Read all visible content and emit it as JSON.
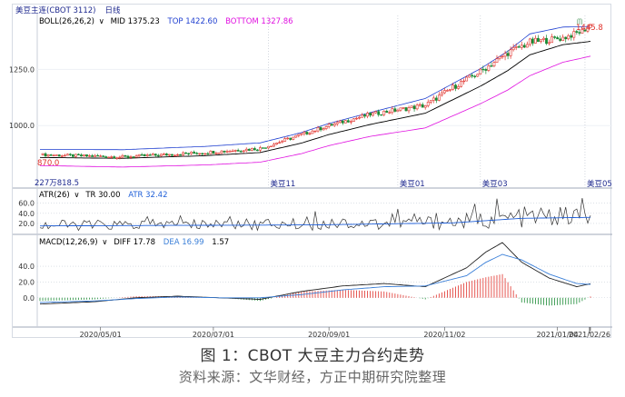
{
  "chart_data": {
    "type": "candlestick",
    "instrument": "美豆主连(CBOT 3112)",
    "period": "日线",
    "price_axis": {
      "ticks": [
        1250.0,
        1000.0
      ],
      "tick_labels": [
        "1250.0",
        "1000.0"
      ]
    },
    "boll_header": {
      "name": "BOLL(26,26,2)",
      "mid": "MID 1375.23",
      "top": "TOP 1422.60",
      "bottom": "BOTTOM 1327.86"
    },
    "annotations": {
      "high": "1445.8",
      "low": "870.0",
      "low2": "227万818.5"
    },
    "contract_labels": [
      "美豆11",
      "美豆01",
      "美豆03",
      "美豆05"
    ],
    "atr_header": {
      "name": "ATR(26)",
      "tr": "TR 30.00",
      "atr": "ATR 32.42"
    },
    "atr_axis": {
      "ticks": [
        20.0,
        40.0,
        60.0
      ],
      "tick_labels": [
        "20.0",
        "40.0",
        "60.0"
      ]
    },
    "macd_header": {
      "name": "MACD(12,26,9)",
      "diff": "DIFF 17.78",
      "dea": "DEA 16.99",
      "macd": "1.57"
    },
    "macd_axis": {
      "ticks": [
        0.0,
        20.0,
        40.0
      ],
      "tick_labels": [
        "0.0",
        "20.0",
        "40.0"
      ]
    },
    "x_axis": {
      "labels": [
        "2020/05/01",
        "2020/07/01",
        "2020/09/01",
        "2020/11/02",
        "2021/01/04",
        "2021/02/26"
      ]
    },
    "price_series": {
      "day_index": [
        0,
        30,
        60,
        80,
        95,
        105,
        120,
        140,
        150,
        160,
        170,
        178,
        190,
        197,
        200
      ],
      "close": [
        870,
        860,
        880,
        898,
        960,
        1000,
        1050,
        1090,
        1170,
        1240,
        1325,
        1370,
        1390,
        1420,
        1445
      ]
    },
    "boll_mid": {
      "day_index": [
        0,
        30,
        60,
        80,
        95,
        105,
        120,
        140,
        150,
        160,
        170,
        178,
        190,
        197,
        200
      ],
      "values": [
        858,
        854,
        866,
        880,
        922,
        960,
        1005,
        1055,
        1115,
        1175,
        1245,
        1315,
        1360,
        1370,
        1375
      ]
    },
    "boll_band_width": {
      "day_index": [
        0,
        80,
        120,
        160,
        178,
        200
      ],
      "values": [
        18,
        25,
        35,
        60,
        75,
        48
      ]
    },
    "atr_series": {
      "day_index": [
        0,
        100,
        150,
        175,
        200
      ],
      "values": [
        15,
        17,
        21,
        30,
        32
      ]
    },
    "macd_series": {
      "day_index": [
        0,
        20,
        35,
        50,
        65,
        80,
        95,
        110,
        125,
        140,
        155,
        162,
        168,
        175,
        185,
        195,
        200
      ],
      "diff": [
        -8,
        -5,
        0,
        2,
        0,
        -2,
        8,
        15,
        18,
        14,
        38,
        58,
        70,
        45,
        25,
        14,
        17.8
      ],
      "dea": [
        -6,
        -4,
        -1,
        1,
        0,
        0,
        4,
        10,
        14,
        15,
        28,
        45,
        55,
        48,
        30,
        18,
        17.0
      ]
    },
    "colors": {
      "up": "#e0302a",
      "down": "#1a8a34",
      "mid": "#000000",
      "top": "#1f3fd0",
      "bottom": "#e011e0",
      "atr_tr": "#333333",
      "atr_line": "#1f5fd8",
      "diff": "#222222",
      "dea": "#3a7fd8"
    }
  },
  "caption": "图 1：CBOT 大豆主力合约走势",
  "source": "资料来源：文华财经，方正中期研究院整理"
}
